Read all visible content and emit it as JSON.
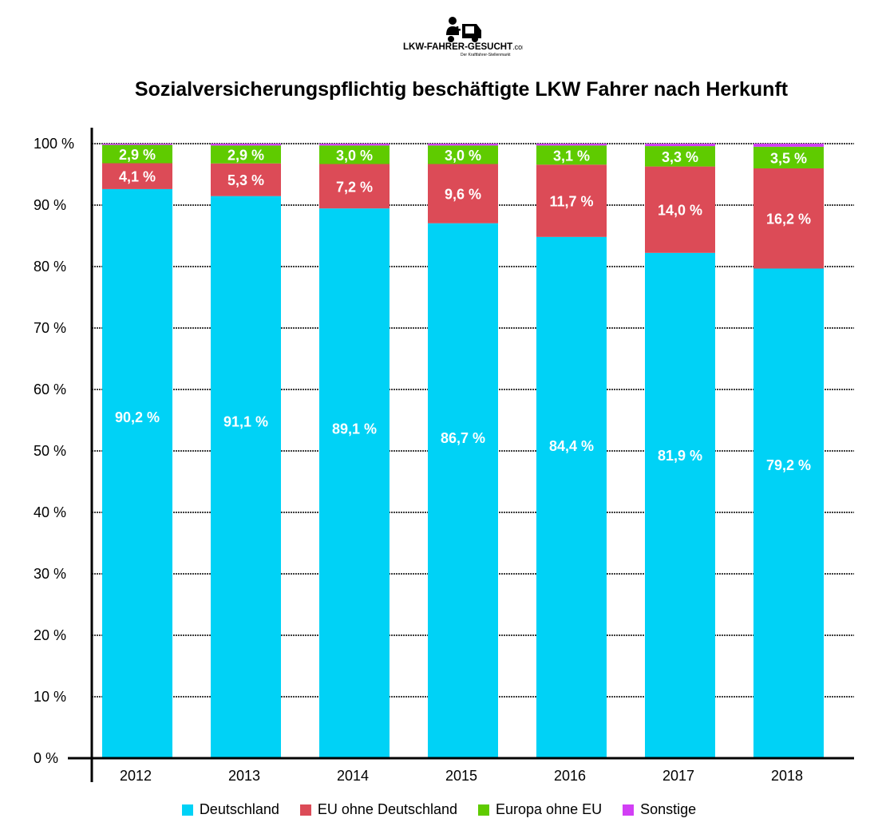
{
  "logo": {
    "text": "LKW-FAHRER-GESUCHT.com",
    "tagline": "Der Kraftfahrer-Stellenmarkt"
  },
  "chart_data": {
    "type": "bar",
    "stacked": true,
    "title": "Sozialversicherungspflichtig beschäftigte LKW Fahrer nach Herkunft",
    "xlabel": "",
    "ylabel": "",
    "ylim": [
      0,
      100
    ],
    "yticks": [
      "0 %",
      "10 %",
      "20 %",
      "30 %",
      "40 %",
      "50 %",
      "60 %",
      "70 %",
      "80 %",
      "90 %",
      "100 %"
    ],
    "grid": true,
    "legend_position": "bottom",
    "categories": [
      "2012",
      "2013",
      "2014",
      "2015",
      "2016",
      "2017",
      "2018"
    ],
    "series": [
      {
        "name": "Deutschland",
        "color": "#00d2f6",
        "values": [
          90.2,
          91.1,
          89.1,
          86.7,
          84.4,
          81.9,
          79.2
        ],
        "labels": [
          "90,2 %",
          "91,1 %",
          "89,1 %",
          "86,7 %",
          "84,4 %",
          "81,9 %",
          "79,2 %"
        ]
      },
      {
        "name": "EU ohne Deutschland",
        "color": "#dc4b57",
        "values": [
          4.1,
          5.3,
          7.2,
          9.6,
          11.7,
          14.0,
          16.2
        ],
        "labels": [
          "4,1 %",
          "5,3 %",
          "7,2 %",
          "9,6 %",
          "11,7 %",
          "14,0 %",
          "16,2 %"
        ]
      },
      {
        "name": "Europa ohne EU",
        "color": "#5fcb00",
        "values": [
          2.9,
          2.9,
          3.0,
          3.0,
          3.1,
          3.3,
          3.5
        ],
        "labels": [
          "2,9 %",
          "2,9 %",
          "3,0 %",
          "3,0 %",
          "3,1 %",
          "3,3 %",
          "3,5 %"
        ]
      },
      {
        "name": "Sonstige",
        "color": "#d23ff5",
        "values": [
          0.2,
          0.3,
          0.3,
          0.3,
          0.3,
          0.4,
          0.5
        ],
        "labels": []
      }
    ]
  }
}
